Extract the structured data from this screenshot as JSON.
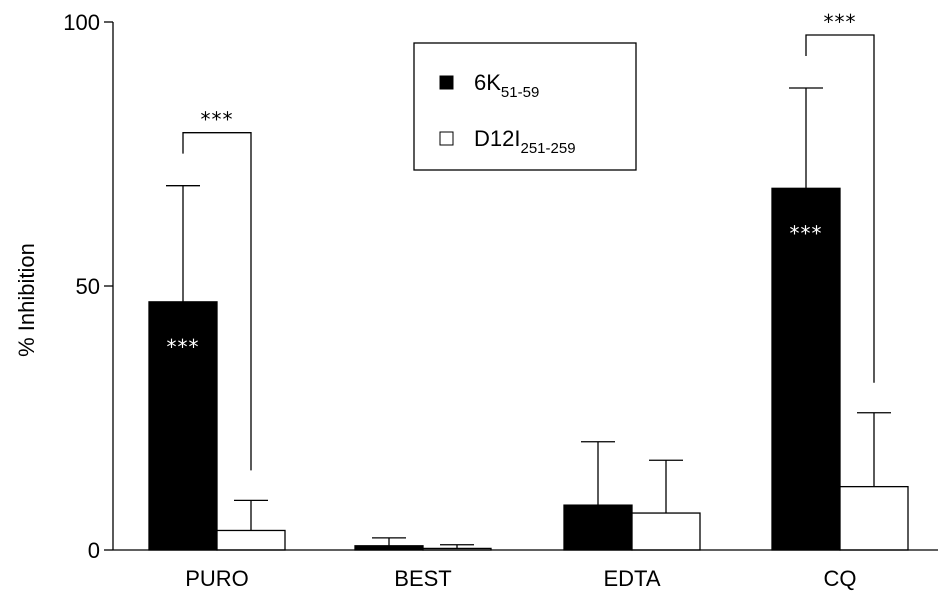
{
  "chart_data": {
    "type": "bar",
    "title": "",
    "xlabel": "",
    "ylabel": "% Inhibition",
    "ylim": [
      0,
      100
    ],
    "yticks": [
      0,
      50,
      100
    ],
    "ytick_labels": [
      "0",
      "50",
      "100"
    ],
    "categories": [
      "PURO",
      "BEST",
      "EDTA",
      "CQ"
    ],
    "grid": false,
    "legend_position": "top-center",
    "series": [
      {
        "name": "6K51-59",
        "legend_main": "6K",
        "legend_sub": "51-59",
        "color": "#000000",
        "values": [
          47,
          0.8,
          8.5,
          68.5
        ],
        "errors": [
          22,
          1.5,
          12,
          19
        ]
      },
      {
        "name": "D12I251-259",
        "legend_main": "D12I",
        "legend_sub": "251-259",
        "color": "#ffffff",
        "values": [
          3.7,
          0.3,
          7,
          12
        ],
        "errors": [
          5.7,
          0.7,
          10,
          14
        ]
      }
    ],
    "annotations": {
      "inbar_stars": [
        {
          "category": "PURO",
          "series": 0,
          "text": "***"
        },
        {
          "category": "CQ",
          "series": 0,
          "text": "***"
        }
      ],
      "brackets": [
        {
          "category": "PURO",
          "text": "***"
        },
        {
          "category": "CQ",
          "text": "***"
        }
      ]
    }
  }
}
